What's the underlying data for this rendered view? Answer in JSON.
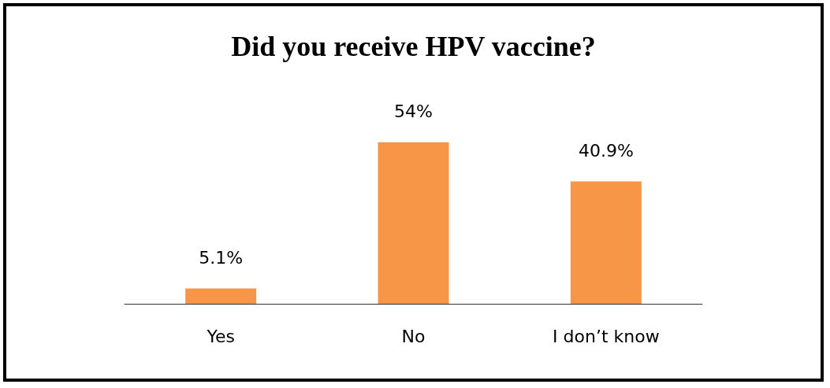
{
  "chart_data": {
    "type": "bar",
    "title": "Did you receive HPV vaccine?",
    "categories": [
      "Yes",
      "No",
      "I don’t know"
    ],
    "values": [
      5.1,
      54,
      40.9
    ],
    "color": "#f79646",
    "value_labels": [
      "5.1%",
      "54%",
      "40.9%"
    ]
  }
}
